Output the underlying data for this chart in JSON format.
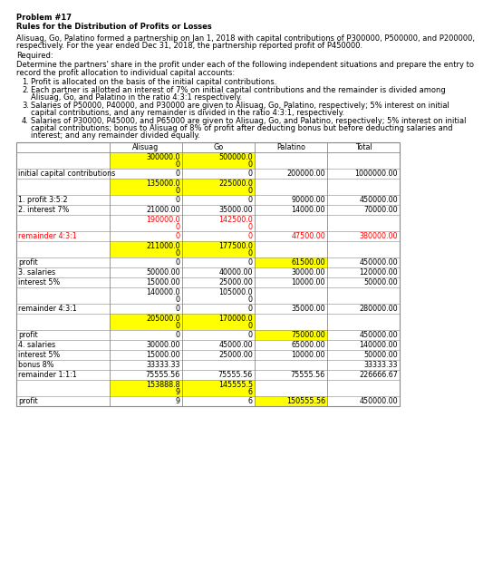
{
  "title": "Problem #17",
  "subtitle": "Rules for the Distribution of Profits or Losses",
  "intro_line1": "Alisuag, Go, Palatino formed a partnership on Jan 1, 2018 with capital contributions of P300000, P500000, and P200000,",
  "intro_line2": "respectively. For the year ended Dec 31, 2018, the partnership reported profit of P450000.",
  "required": "Required:",
  "req_detail1": "Determine the partners' share in the profit under each of the following independent situations and prepare the entry to",
  "req_detail2": "record the profit allocation to individual capital accounts:",
  "rules": [
    "Profit is allocated on the basis of the initial capital contributions.",
    "Each partner is allotted an interest of 7% on initial capital contributions and the remainder is divided among\nAlisuag, Go, and Palatino in the ratio 4:3:1 respectively.",
    "Salaries of P50000, P40000, and P30000 are given to Alisuag, Go, Palatino, respectively; 5% interest on initial\ncapital contributions, and any remainder is divided in the ratio 4:3:1, respectively.",
    "Salaries of P30000, P45000, and P65000 are given to Alisuag, Go, and Palatino, respectively; 5% interest on initial\ncapital contributions; bonus to Alisuag of 8% of profit after deducting bonus but before deducting salaries and\ninterest; and any remainder divided equally."
  ],
  "col_headers": [
    "",
    "Alisuag",
    "Go",
    "Palatino",
    "Total"
  ],
  "rows": [
    {
      "label": "",
      "vals": [
        "300000.0\n0",
        "500000.0\n0",
        "",
        ""
      ],
      "hi": [
        1,
        1,
        0,
        0
      ],
      "red": false,
      "profit_row": false
    },
    {
      "label": "initial capital contributions",
      "vals": [
        "0",
        "0",
        "200000.00",
        "1000000.00"
      ],
      "hi": [
        0,
        0,
        0,
        0
      ],
      "red": false,
      "profit_row": false
    },
    {
      "label": "",
      "vals": [
        "135000.0\n0",
        "225000.0\n0",
        "",
        ""
      ],
      "hi": [
        1,
        1,
        0,
        0
      ],
      "red": false,
      "profit_row": false
    },
    {
      "label": "1. profit 3:5:2",
      "vals": [
        "0",
        "0",
        "90000.00",
        "450000.00"
      ],
      "hi": [
        0,
        0,
        0,
        0
      ],
      "red": false,
      "profit_row": false
    },
    {
      "label": "2. interest 7%",
      "vals": [
        "21000.00",
        "35000.00",
        "14000.00",
        "70000.00"
      ],
      "hi": [
        0,
        0,
        0,
        0
      ],
      "red": false,
      "profit_row": false
    },
    {
      "label": "",
      "vals": [
        "190000.0\n0",
        "142500.0\n0",
        "",
        ""
      ],
      "hi": [
        0,
        0,
        0,
        0
      ],
      "red": true,
      "profit_row": false
    },
    {
      "label": "remainder 4:3:1",
      "vals": [
        "0",
        "0",
        "47500.00",
        "380000.00"
      ],
      "hi": [
        0,
        0,
        0,
        0
      ],
      "red": true,
      "profit_row": false
    },
    {
      "label": "",
      "vals": [
        "211000.0\n0",
        "177500.0\n0",
        "",
        ""
      ],
      "hi": [
        1,
        1,
        0,
        0
      ],
      "red": false,
      "profit_row": false
    },
    {
      "label": "profit",
      "vals": [
        "0",
        "0",
        "61500.00",
        "450000.00"
      ],
      "hi": [
        0,
        0,
        0,
        0
      ],
      "red": false,
      "profit_row": false
    },
    {
      "label": "3. salaries",
      "vals": [
        "50000.00",
        "40000.00",
        "30000.00",
        "120000.00"
      ],
      "hi": [
        0,
        0,
        0,
        0
      ],
      "red": false,
      "profit_row": false
    },
    {
      "label": "interest 5%",
      "vals": [
        "15000.00",
        "25000.00",
        "10000.00",
        "50000.00"
      ],
      "hi": [
        0,
        0,
        0,
        0
      ],
      "red": false,
      "profit_row": false
    },
    {
      "label": "",
      "vals": [
        "140000.0\n0",
        "105000.0\n0",
        "",
        ""
      ],
      "hi": [
        0,
        0,
        0,
        0
      ],
      "red": false,
      "profit_row": false
    },
    {
      "label": "remainder 4:3:1",
      "vals": [
        "0",
        "0",
        "35000.00",
        "280000.00"
      ],
      "hi": [
        0,
        0,
        0,
        0
      ],
      "red": false,
      "profit_row": false
    },
    {
      "label": "",
      "vals": [
        "205000.0\n0",
        "170000.0\n0",
        "",
        ""
      ],
      "hi": [
        1,
        1,
        0,
        0
      ],
      "red": false,
      "profit_row": false
    },
    {
      "label": "profit",
      "vals": [
        "0",
        "0",
        "75000.00",
        "450000.00"
      ],
      "hi": [
        0,
        0,
        0,
        0
      ],
      "red": false,
      "profit_row": false
    },
    {
      "label": "4. salaries",
      "vals": [
        "30000.00",
        "45000.00",
        "65000.00",
        "140000.00"
      ],
      "hi": [
        0,
        0,
        0,
        0
      ],
      "red": false,
      "profit_row": false
    },
    {
      "label": "interest 5%",
      "vals": [
        "15000.00",
        "25000.00",
        "10000.00",
        "50000.00"
      ],
      "hi": [
        0,
        0,
        0,
        0
      ],
      "red": false,
      "profit_row": false
    },
    {
      "label": "bonus 8%",
      "vals": [
        "33333.33",
        "",
        "",
        "33333.33"
      ],
      "hi": [
        0,
        0,
        0,
        0
      ],
      "red": false,
      "profit_row": false
    },
    {
      "label": "remainder 1:1:1",
      "vals": [
        "75555.56",
        "75555.56",
        "75555.56",
        "226666.67"
      ],
      "hi": [
        0,
        0,
        0,
        0
      ],
      "red": false,
      "profit_row": false
    },
    {
      "label": "",
      "vals": [
        "153888.8\n9",
        "145555.5\n6",
        "",
        ""
      ],
      "hi": [
        1,
        1,
        0,
        0
      ],
      "red": false,
      "profit_row": false
    },
    {
      "label": "profit",
      "vals": [
        "9",
        "6",
        "150555.56",
        "450000.00"
      ],
      "hi": [
        0,
        0,
        0,
        0
      ],
      "red": false,
      "profit_row": false
    }
  ],
  "yellow": "#FFFF00",
  "red_text": "#FF0000",
  "black": "#000000",
  "white": "#FFFFFF"
}
